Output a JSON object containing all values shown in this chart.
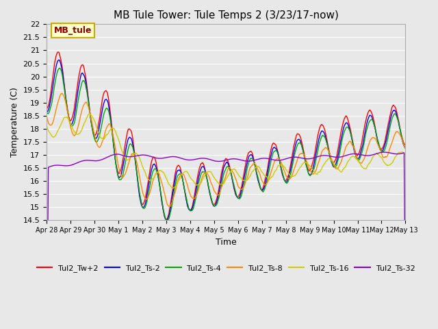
{
  "title": "MB Tule Tower: Tule Temps 2 (3/23/17-now)",
  "xlabel": "Time",
  "ylabel": "Temperature (C)",
  "ylim": [
    14.5,
    22.0
  ],
  "yticks": [
    14.5,
    15.0,
    15.5,
    16.0,
    16.5,
    17.0,
    17.5,
    18.0,
    18.5,
    19.0,
    19.5,
    20.0,
    20.5,
    21.0,
    21.5,
    22.0
  ],
  "bg_color": "#e8e8e8",
  "grid_color": "white",
  "legend_label": "MB_tule",
  "series": [
    {
      "name": "Tul2_Tw+2",
      "color": "#ff0000"
    },
    {
      "name": "Tul2_Ts-2",
      "color": "#0000ff"
    },
    {
      "name": "Tul2_Ts-4",
      "color": "#00aa00"
    },
    {
      "name": "Tul2_Ts-8",
      "color": "#ff8800"
    },
    {
      "name": "Tul2_Ts-16",
      "color": "#cccc00"
    },
    {
      "name": "Tul2_Ts-32",
      "color": "#8800cc"
    }
  ],
  "xtick_labels": [
    "Apr 28",
    "Apr 29",
    "Apr 30",
    "May 1",
    "May 2",
    "May 3",
    "May 4",
    "May 5",
    "May 6",
    "May 7",
    "May 8",
    "May 9",
    "May 10",
    "May 11",
    "May 12",
    "May 13"
  ],
  "n_days": 16
}
